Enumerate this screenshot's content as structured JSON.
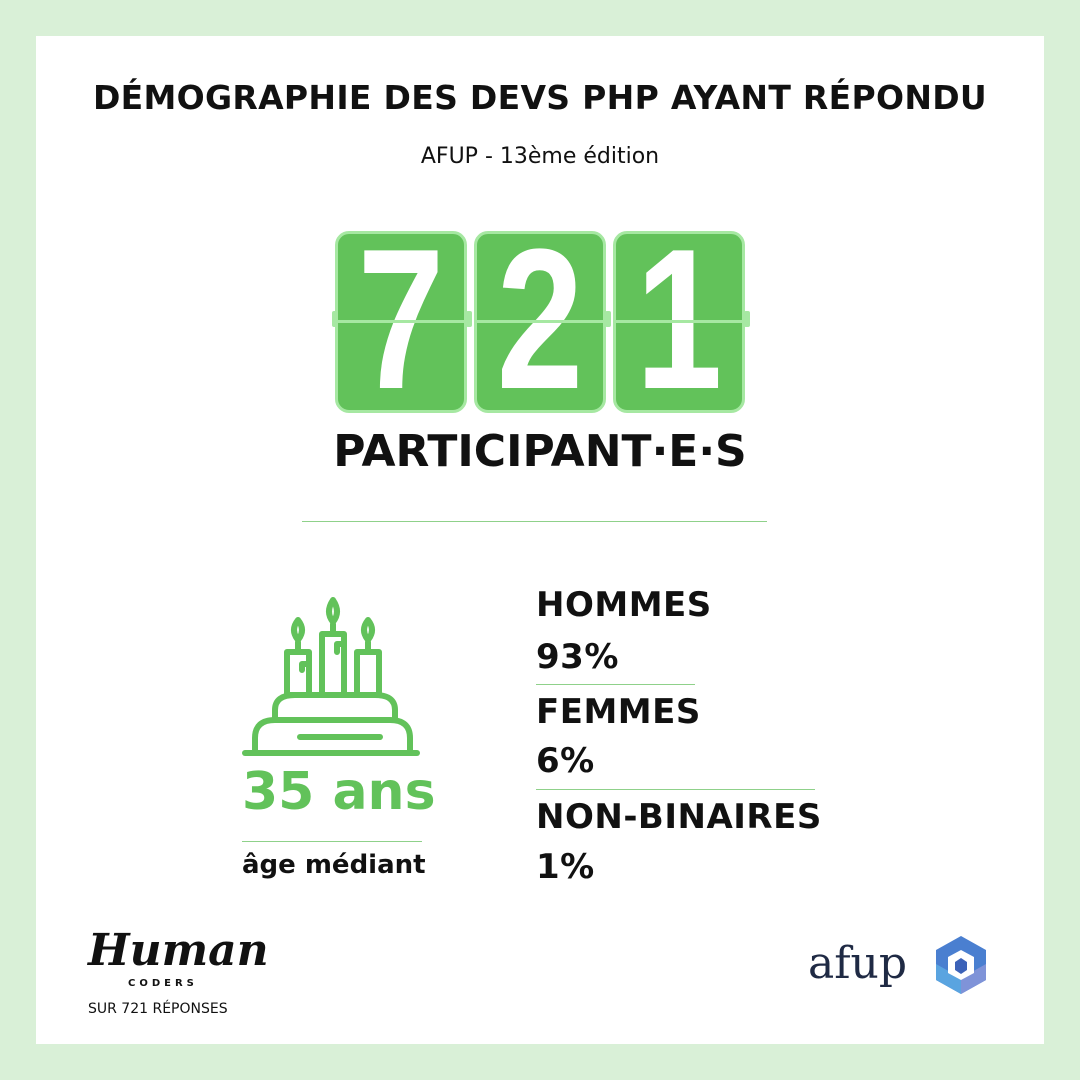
{
  "title": "DÉMOGRAPHIE DES DEVS PHP AYANT RÉPONDU",
  "subtitle": "AFUP - 13ème édition",
  "counter": {
    "digits": [
      "7",
      "2",
      "1"
    ],
    "label": "PARTICIPANT·E·S"
  },
  "age": {
    "value": "35 ans",
    "label": "âge médiant",
    "icon": "birthday-cake-icon"
  },
  "genders": [
    {
      "label": "HOMMES",
      "value": "93%"
    },
    {
      "label": "FEMMES",
      "value": "6%"
    },
    {
      "label": "NON-BINAIRES",
      "value": "1%"
    }
  ],
  "footer": {
    "logo_left": "Human",
    "logo_left_sub": "CODERS",
    "note": "SUR 721 RÉPONSES",
    "logo_right": "afup"
  },
  "colors": {
    "accent": "#62c25a",
    "accent_light": "#a6e8a2",
    "background": "#d9f0d7"
  }
}
